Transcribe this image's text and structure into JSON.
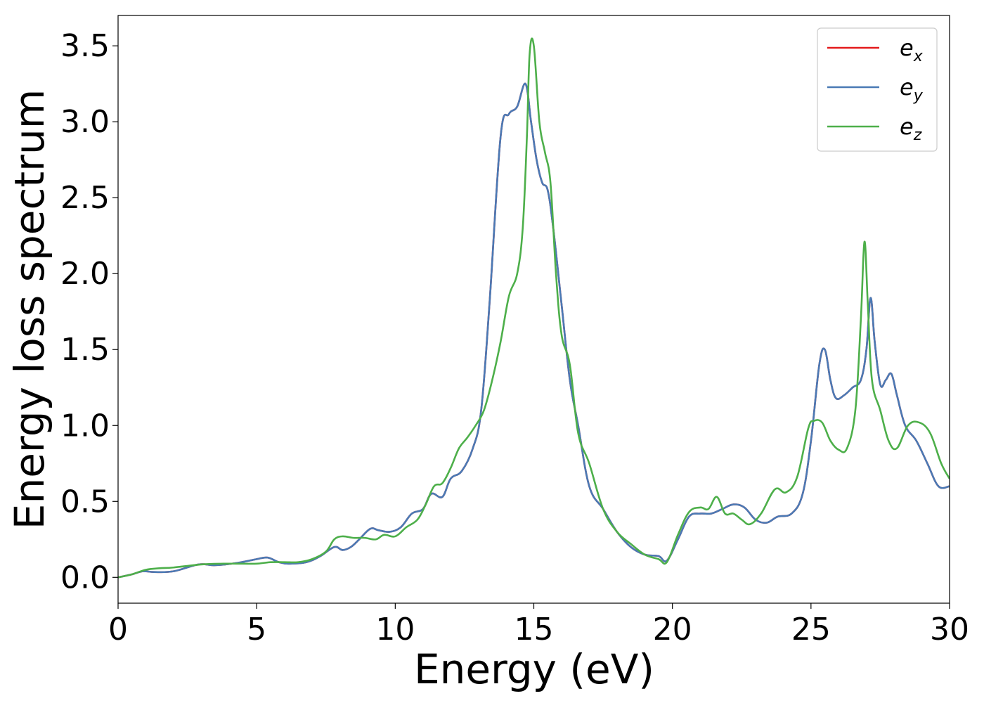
{
  "chart_data": {
    "type": "line",
    "title": "",
    "xlabel": "Energy (eV)",
    "ylabel": "Energy loss spectrum",
    "xlim": [
      0,
      30
    ],
    "ylim": [
      -0.17,
      3.7
    ],
    "xticks": [
      0,
      5,
      10,
      15,
      20,
      25,
      30
    ],
    "xtick_labels": [
      "0",
      "5",
      "10",
      "15",
      "20",
      "25",
      "30"
    ],
    "yticks": [
      0.0,
      0.5,
      1.0,
      1.5,
      2.0,
      2.5,
      3.0,
      3.5
    ],
    "ytick_labels": [
      "0.0",
      "0.5",
      "1.0",
      "1.5",
      "2.0",
      "2.5",
      "3.0",
      "3.5"
    ],
    "grid": false,
    "legend": {
      "position": "top-right"
    },
    "series": [
      {
        "name": "e_x",
        "name_base": "e",
        "name_sub": "x",
        "color": "#e41a1c",
        "x": [
          0,
          0.5,
          0.9,
          1.3,
          2.0,
          2.9,
          3.5,
          4.3,
          5.0,
          5.4,
          5.8,
          6.2,
          6.8,
          7.3,
          7.8,
          8.1,
          8.4,
          8.7,
          9.1,
          9.4,
          9.8,
          10.2,
          10.6,
          11.0,
          11.3,
          11.7,
          12.0,
          12.4,
          12.8,
          13.1,
          13.4,
          13.8,
          14.1,
          14.4,
          14.7,
          14.9,
          15.1,
          15.3,
          15.5,
          15.7,
          16.0,
          16.3,
          16.6,
          17.0,
          17.5,
          18.0,
          18.5,
          19.0,
          19.5,
          19.8,
          20.2,
          20.6,
          21.0,
          21.4,
          21.8,
          22.2,
          22.6,
          23.0,
          23.4,
          23.8,
          24.3,
          24.7,
          25.0,
          25.3,
          25.5,
          25.7,
          25.9,
          26.2,
          26.5,
          26.8,
          27.0,
          27.15,
          27.3,
          27.5,
          27.7,
          27.9,
          28.1,
          28.4,
          28.8,
          29.2,
          29.6,
          30.0
        ],
        "values": [
          0.0,
          0.02,
          0.04,
          0.035,
          0.04,
          0.085,
          0.08,
          0.095,
          0.12,
          0.13,
          0.1,
          0.09,
          0.1,
          0.14,
          0.2,
          0.18,
          0.2,
          0.25,
          0.32,
          0.31,
          0.3,
          0.33,
          0.42,
          0.45,
          0.55,
          0.53,
          0.65,
          0.7,
          0.85,
          1.1,
          1.8,
          2.9,
          3.05,
          3.1,
          3.25,
          3.0,
          2.75,
          2.6,
          2.55,
          2.3,
          1.8,
          1.3,
          1.0,
          0.6,
          0.45,
          0.3,
          0.2,
          0.15,
          0.14,
          0.11,
          0.25,
          0.4,
          0.42,
          0.42,
          0.45,
          0.48,
          0.46,
          0.38,
          0.36,
          0.4,
          0.42,
          0.55,
          0.9,
          1.4,
          1.5,
          1.3,
          1.18,
          1.2,
          1.25,
          1.3,
          1.5,
          1.84,
          1.55,
          1.27,
          1.3,
          1.34,
          1.2,
          1.0,
          0.9,
          0.75,
          0.6,
          0.6
        ]
      },
      {
        "name": "e_y",
        "name_base": "e",
        "name_sub": "y",
        "color": "#4a7ab5",
        "x": [
          0,
          0.5,
          0.9,
          1.3,
          2.0,
          2.9,
          3.5,
          4.3,
          5.0,
          5.4,
          5.8,
          6.2,
          6.8,
          7.3,
          7.8,
          8.1,
          8.4,
          8.7,
          9.1,
          9.4,
          9.8,
          10.2,
          10.6,
          11.0,
          11.3,
          11.7,
          12.0,
          12.4,
          12.8,
          13.1,
          13.4,
          13.8,
          14.1,
          14.4,
          14.7,
          14.9,
          15.1,
          15.3,
          15.5,
          15.7,
          16.0,
          16.3,
          16.6,
          17.0,
          17.5,
          18.0,
          18.5,
          19.0,
          19.5,
          19.8,
          20.2,
          20.6,
          21.0,
          21.4,
          21.8,
          22.2,
          22.6,
          23.0,
          23.4,
          23.8,
          24.3,
          24.7,
          25.0,
          25.3,
          25.5,
          25.7,
          25.9,
          26.2,
          26.5,
          26.8,
          27.0,
          27.15,
          27.3,
          27.5,
          27.7,
          27.9,
          28.1,
          28.4,
          28.8,
          29.2,
          29.6,
          30.0
        ],
        "values": [
          0.0,
          0.02,
          0.04,
          0.035,
          0.04,
          0.085,
          0.08,
          0.095,
          0.12,
          0.13,
          0.1,
          0.09,
          0.1,
          0.14,
          0.2,
          0.18,
          0.2,
          0.25,
          0.32,
          0.31,
          0.3,
          0.33,
          0.42,
          0.45,
          0.55,
          0.53,
          0.65,
          0.7,
          0.85,
          1.1,
          1.8,
          2.9,
          3.05,
          3.1,
          3.25,
          3.0,
          2.75,
          2.6,
          2.55,
          2.3,
          1.8,
          1.3,
          1.0,
          0.6,
          0.45,
          0.3,
          0.2,
          0.15,
          0.14,
          0.11,
          0.25,
          0.4,
          0.42,
          0.42,
          0.45,
          0.48,
          0.46,
          0.38,
          0.36,
          0.4,
          0.42,
          0.55,
          0.9,
          1.4,
          1.5,
          1.3,
          1.18,
          1.2,
          1.25,
          1.3,
          1.5,
          1.84,
          1.55,
          1.27,
          1.3,
          1.34,
          1.2,
          1.0,
          0.9,
          0.75,
          0.6,
          0.6
        ]
      },
      {
        "name": "e_z",
        "name_base": "e",
        "name_sub": "z",
        "color": "#4daf4a",
        "x": [
          0,
          0.5,
          1.0,
          1.5,
          2.0,
          3.0,
          3.8,
          4.5,
          5.0,
          5.5,
          6.0,
          6.5,
          7.0,
          7.5,
          7.8,
          8.1,
          8.5,
          8.9,
          9.3,
          9.6,
          10.0,
          10.4,
          10.8,
          11.1,
          11.4,
          11.7,
          12.0,
          12.3,
          12.6,
          12.9,
          13.2,
          13.5,
          13.8,
          14.1,
          14.4,
          14.6,
          14.75,
          14.85,
          15.0,
          15.2,
          15.4,
          15.6,
          15.8,
          16.0,
          16.3,
          16.6,
          17.0,
          17.5,
          18.0,
          18.5,
          19.0,
          19.5,
          19.8,
          20.2,
          20.6,
          21.0,
          21.3,
          21.6,
          21.9,
          22.2,
          22.5,
          22.8,
          23.2,
          23.7,
          24.1,
          24.5,
          24.9,
          25.1,
          25.4,
          25.7,
          26.0,
          26.3,
          26.6,
          26.8,
          26.93,
          27.05,
          27.2,
          27.5,
          27.8,
          28.1,
          28.5,
          28.9,
          29.3,
          29.7,
          30.0
        ],
        "values": [
          0.0,
          0.02,
          0.05,
          0.06,
          0.065,
          0.085,
          0.09,
          0.09,
          0.09,
          0.1,
          0.1,
          0.1,
          0.12,
          0.17,
          0.25,
          0.27,
          0.26,
          0.26,
          0.25,
          0.28,
          0.27,
          0.33,
          0.38,
          0.48,
          0.6,
          0.62,
          0.72,
          0.85,
          0.92,
          1.0,
          1.1,
          1.3,
          1.55,
          1.85,
          2.0,
          2.3,
          2.9,
          3.45,
          3.5,
          3.0,
          2.8,
          2.6,
          2.0,
          1.6,
          1.4,
          0.95,
          0.75,
          0.45,
          0.3,
          0.22,
          0.15,
          0.12,
          0.1,
          0.28,
          0.43,
          0.46,
          0.45,
          0.53,
          0.42,
          0.42,
          0.38,
          0.35,
          0.42,
          0.58,
          0.56,
          0.66,
          0.98,
          1.03,
          1.02,
          0.9,
          0.84,
          0.85,
          1.1,
          1.7,
          2.21,
          1.8,
          1.3,
          1.1,
          0.9,
          0.85,
          1.0,
          1.02,
          0.95,
          0.75,
          0.65
        ]
      }
    ]
  }
}
